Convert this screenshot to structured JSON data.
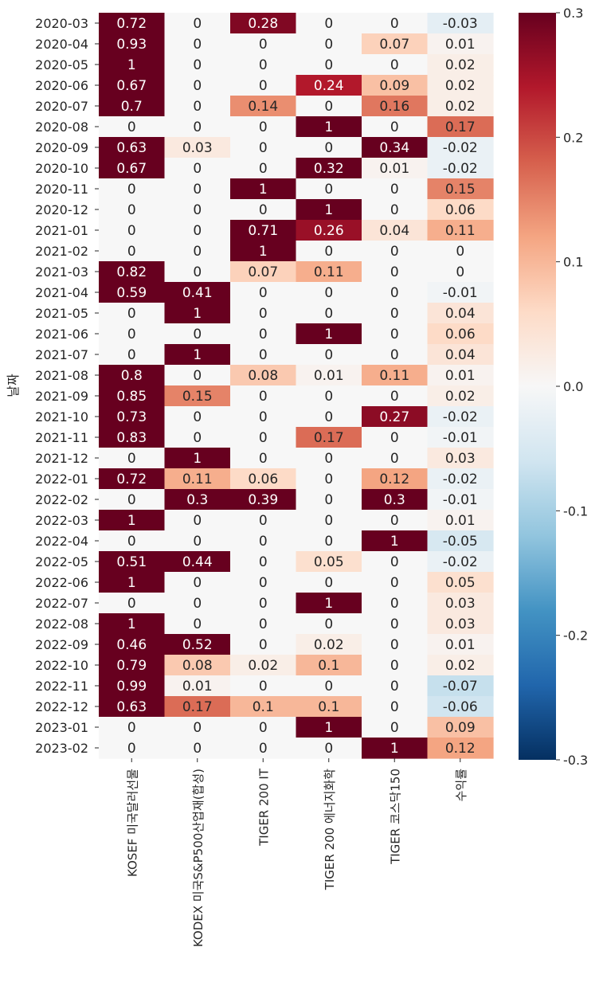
{
  "chart_data": {
    "type": "heatmap",
    "ylabel": "날짜",
    "columns": [
      "KOSEF 미국달러선물",
      "KODEX 미국S&P500산업재(합성)",
      "TIGER 200 IT",
      "TIGER 200 에너지화학",
      "TIGER 코스닥150",
      "수익률"
    ],
    "rows": [
      "2020-03",
      "2020-04",
      "2020-05",
      "2020-06",
      "2020-07",
      "2020-08",
      "2020-09",
      "2020-10",
      "2020-11",
      "2020-12",
      "2021-01",
      "2021-02",
      "2021-03",
      "2021-04",
      "2021-05",
      "2021-06",
      "2021-07",
      "2021-08",
      "2021-09",
      "2021-10",
      "2021-11",
      "2021-12",
      "2022-01",
      "2022-02",
      "2022-03",
      "2022-04",
      "2022-05",
      "2022-06",
      "2022-07",
      "2022-08",
      "2022-09",
      "2022-10",
      "2022-11",
      "2022-12",
      "2023-01",
      "2023-02"
    ],
    "values": [
      [
        0.72,
        0,
        0.28,
        0,
        0,
        -0.03
      ],
      [
        0.93,
        0,
        0,
        0,
        0.07,
        0.01
      ],
      [
        1,
        0,
        0,
        0,
        0,
        0.02
      ],
      [
        0.67,
        0,
        0,
        0.24,
        0.09,
        0.02
      ],
      [
        0.7,
        0,
        0.14,
        0,
        0.16,
        0.02
      ],
      [
        0,
        0,
        0,
        1,
        0,
        0.17
      ],
      [
        0.63,
        0.03,
        0,
        0,
        0.34,
        -0.02
      ],
      [
        0.67,
        0,
        0,
        0.32,
        0.01,
        -0.02
      ],
      [
        0,
        0,
        1,
        0,
        0,
        0.15
      ],
      [
        0,
        0,
        0,
        1,
        0,
        0.06
      ],
      [
        0,
        0,
        0.71,
        0.26,
        0.04,
        0.11
      ],
      [
        0,
        0,
        1,
        0,
        0,
        0
      ],
      [
        0.82,
        0,
        0.07,
        0.11,
        0,
        0
      ],
      [
        0.59,
        0.41,
        0,
        0,
        0,
        -0.01
      ],
      [
        0,
        1,
        0,
        0,
        0,
        0.04
      ],
      [
        0,
        0,
        0,
        1,
        0,
        0.06
      ],
      [
        0,
        1,
        0,
        0,
        0,
        0.04
      ],
      [
        0.8,
        0,
        0.08,
        0.01,
        0.11,
        0.01
      ],
      [
        0.85,
        0.15,
        0,
        0,
        0,
        0.02
      ],
      [
        0.73,
        0,
        0,
        0,
        0.27,
        -0.02
      ],
      [
        0.83,
        0,
        0,
        0.17,
        0,
        -0.01
      ],
      [
        0,
        1,
        0,
        0,
        0,
        0.03
      ],
      [
        0.72,
        0.11,
        0.06,
        0,
        0.12,
        -0.02
      ],
      [
        0,
        0.3,
        0.39,
        0,
        0.3,
        -0.01
      ],
      [
        1,
        0,
        0,
        0,
        0,
        0.01
      ],
      [
        0,
        0,
        0,
        0,
        1,
        -0.05
      ],
      [
        0.51,
        0.44,
        0,
        0.05,
        0,
        -0.02
      ],
      [
        1,
        0,
        0,
        0,
        0,
        0.05
      ],
      [
        0,
        0,
        0,
        1,
        0,
        0.03
      ],
      [
        1,
        0,
        0,
        0,
        0,
        0.03
      ],
      [
        0.46,
        0.52,
        0,
        0.02,
        0,
        0.01
      ],
      [
        0.79,
        0.08,
        0.02,
        0.1,
        0,
        0.02
      ],
      [
        0.99,
        0.01,
        0,
        0,
        0,
        -0.07
      ],
      [
        0.63,
        0.17,
        0.1,
        0.1,
        0,
        -0.06
      ],
      [
        0,
        0,
        0,
        1,
        0,
        0.09
      ],
      [
        0,
        0,
        0,
        0,
        1,
        0.12
      ]
    ],
    "value_labels": [
      [
        "0.72",
        "0",
        "0.28",
        "0",
        "0",
        "-0.03"
      ],
      [
        "0.93",
        "0",
        "0",
        "0",
        "0.07",
        "0.01"
      ],
      [
        "1",
        "0",
        "0",
        "0",
        "0",
        "0.02"
      ],
      [
        "0.67",
        "0",
        "0",
        "0.24",
        "0.09",
        "0.02"
      ],
      [
        "0.7",
        "0",
        "0.14",
        "0",
        "0.16",
        "0.02"
      ],
      [
        "0",
        "0",
        "0",
        "1",
        "0",
        "0.17"
      ],
      [
        "0.63",
        "0.03",
        "0",
        "0",
        "0.34",
        "-0.02"
      ],
      [
        "0.67",
        "0",
        "0",
        "0.32",
        "0.01",
        "-0.02"
      ],
      [
        "0",
        "0",
        "1",
        "0",
        "0",
        "0.15"
      ],
      [
        "0",
        "0",
        "0",
        "1",
        "0",
        "0.06"
      ],
      [
        "0",
        "0",
        "0.71",
        "0.26",
        "0.04",
        "0.11"
      ],
      [
        "0",
        "0",
        "1",
        "0",
        "0",
        "0"
      ],
      [
        "0.82",
        "0",
        "0.07",
        "0.11",
        "0",
        "0"
      ],
      [
        "0.59",
        "0.41",
        "0",
        "0",
        "0",
        "-0.01"
      ],
      [
        "0",
        "1",
        "0",
        "0",
        "0",
        "0.04"
      ],
      [
        "0",
        "0",
        "0",
        "1",
        "0",
        "0.06"
      ],
      [
        "0",
        "1",
        "0",
        "0",
        "0",
        "0.04"
      ],
      [
        "0.8",
        "0",
        "0.08",
        "0.01",
        "0.11",
        "0.01"
      ],
      [
        "0.85",
        "0.15",
        "0",
        "0",
        "0",
        "0.02"
      ],
      [
        "0.73",
        "0",
        "0",
        "0",
        "0.27",
        "-0.02"
      ],
      [
        "0.83",
        "0",
        "0",
        "0.17",
        "0",
        "-0.01"
      ],
      [
        "0",
        "1",
        "0",
        "0",
        "0",
        "0.03"
      ],
      [
        "0.72",
        "0.11",
        "0.06",
        "0",
        "0.12",
        "-0.02"
      ],
      [
        "0",
        "0.3",
        "0.39",
        "0",
        "0.3",
        "-0.01"
      ],
      [
        "1",
        "0",
        "0",
        "0",
        "0",
        "0.01"
      ],
      [
        "0",
        "0",
        "0",
        "0",
        "1",
        "-0.05"
      ],
      [
        "0.51",
        "0.44",
        "0",
        "0.05",
        "0",
        "-0.02"
      ],
      [
        "1",
        "0",
        "0",
        "0",
        "0",
        "0.05"
      ],
      [
        "0",
        "0",
        "0",
        "1",
        "0",
        "0.03"
      ],
      [
        "1",
        "0",
        "0",
        "0",
        "0",
        "0.03"
      ],
      [
        "0.46",
        "0.52",
        "0",
        "0.02",
        "0",
        "0.01"
      ],
      [
        "0.79",
        "0.08",
        "0.02",
        "0.1",
        "0",
        "0.02"
      ],
      [
        "0.99",
        "0.01",
        "0",
        "0",
        "0",
        "-0.07"
      ],
      [
        "0.63",
        "0.17",
        "0.1",
        "0.1",
        "0",
        "-0.06"
      ],
      [
        "0",
        "0",
        "0",
        "1",
        "0",
        "0.09"
      ],
      [
        "0",
        "0",
        "0",
        "0",
        "1",
        "0.12"
      ]
    ],
    "colormap": "RdBu_r",
    "vmin": -0.3,
    "vmax": 0.3,
    "colorbar_ticks": [
      0.3,
      0.2,
      0.1,
      0.0,
      -0.1,
      -0.2,
      -0.3
    ],
    "colorbar_tick_labels": [
      "0.3",
      "0.2",
      "0.1",
      "0.0",
      "-0.1",
      "-0.2",
      "-0.3"
    ],
    "colorbar_position": "right",
    "grid": false
  }
}
